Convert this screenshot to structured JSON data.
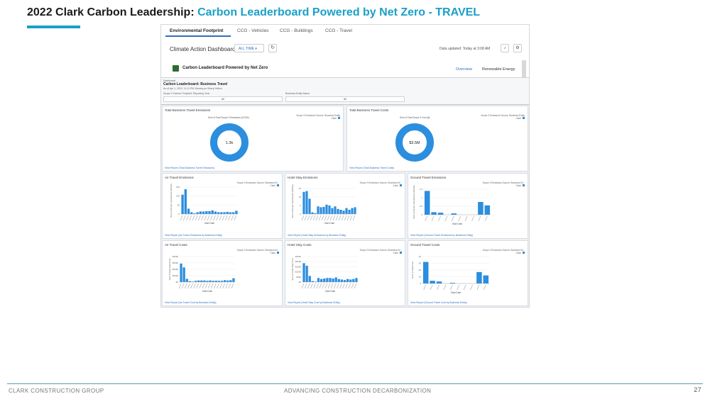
{
  "slide": {
    "title_prefix": "2022 Clark Carbon Leadership: ",
    "title_accent": "Carbon Leaderboard Powered by Net Zero - TRAVEL",
    "footer_left": "CLARK CONSTRUCTION GROUP",
    "footer_center": "ADVANCING CONSTRUCTION DECARBONIZATION",
    "page_number": "27",
    "accent_color": "#1aa0c8"
  },
  "tabs": [
    {
      "label": "Environmental Footprint",
      "active": true
    },
    {
      "label": "CCG - Vehicles",
      "active": false
    },
    {
      "label": "CCG - Buildings",
      "active": false
    },
    {
      "label": "CCG - Travel",
      "active": false
    }
  ],
  "header": {
    "title": "Climate Action Dashboard",
    "time_filter": "ALL TIME",
    "updated": "Data updated: Today at 3:08 AM",
    "refresh_icon": "refresh-icon",
    "bell_icon": "bell-icon",
    "settings_icon": "gear-icon"
  },
  "leaderboard": {
    "title": "Carbon Leaderboard Powered by Net Zero",
    "links": [
      "Overview",
      "Renewable Energy"
    ]
  },
  "embedded": {
    "crumb": "Dashboard",
    "title": "Carbon Leaderboard: Business Travel",
    "subtitle": "As of Apr 1, 2022, 11:11 PM Viewing as Sheryl Helion",
    "filter1_label": "Scope 3 Carbon Footprint: Reporting Year",
    "filter1_value": "All",
    "filter2_label": "Business Entity Name",
    "filter2_value": "All"
  },
  "cards": {
    "emissions_total": {
      "title": "Total Business Travel Emissions",
      "sum_label": "Sum of Total Scope 3 Emissions (tCO2e)",
      "legend": "Scope 3 Emissions Source: Business Entity",
      "legend_item": "Clark",
      "value": "1.3k",
      "link": "View Report (Total Business Travel Emissions)"
    },
    "costs_total": {
      "title": "Total Business Travel Costs",
      "sum_label": "Sum of Total Scope 3 Cost ($)",
      "legend": "Scope 3 Emissions Source: Business Entity",
      "legend_item": "Clark",
      "value": "$3.5M",
      "link": "View Report (Total Business Travel Costs)"
    },
    "air_emissions": {
      "title": "Air Travel Emissions",
      "legend": "Scope 3 Emissions Source: Business En..",
      "legend_item": "Clark",
      "xlabel": "Start Date",
      "ylabel": "Sum of Scope 3 Emissions (tCO2e)",
      "link": "View Report (Air Travel Emissions by Business Entity)"
    },
    "hotel_emissions": {
      "title": "Hotel Stay Emissions",
      "legend": "Scope 3 Emissions Source: Business En..",
      "legend_item": "Clark",
      "xlabel": "Start Date",
      "ylabel": "Sum of Scope 3 Emissions (tCO2e)",
      "link": "View Report (Hotel Stay Emissions by Business Entity)"
    },
    "ground_emissions": {
      "title": "Ground Travel Emissions",
      "legend": "Scope 3 Emissions Source: Business En..",
      "legend_item": "Clark",
      "xlabel": "Start Date",
      "ylabel": "Sum of Scope 3 Emissions (tCO2e)",
      "link": "View Report (Ground Travel Emissions by Business Entity)"
    },
    "air_costs": {
      "title": "Air Travel Costs",
      "legend": "Scope 3 Emissions Source: Business En..",
      "legend_item": "Clark",
      "xlabel": "Start Date",
      "ylabel": "Sum of Expensed Cost",
      "link": "View Report (Air Travel Cost by Business Entity)"
    },
    "hotel_costs": {
      "title": "Hotel Stay Costs",
      "legend": "Scope 3 Emissions Source: Business En..",
      "legend_item": "Clark",
      "xlabel": "Start Date",
      "ylabel": "Sum of Hotel Stay Cost",
      "link": "View Report (Hotel Stay Cost by Business Entity)"
    },
    "ground_costs": {
      "title": "Ground Travel Costs",
      "legend": "Scope 3 Emissions Source: Business En..",
      "legend_item": "Clark",
      "xlabel": "Start Date",
      "ylabel": "Sum of Total Cost",
      "link": "View Report (Ground Travel Cost by Business Entity)"
    }
  },
  "chart_data": [
    {
      "id": "emissions_total",
      "type": "pie",
      "values": [
        1300
      ],
      "center_label": "1.3k",
      "color": "#2b8ede"
    },
    {
      "id": "costs_total",
      "type": "pie",
      "values": [
        3500000
      ],
      "center_label": "$3.5M",
      "color": "#2b8ede"
    },
    {
      "id": "air_emissions",
      "type": "bar",
      "color": "#2b8ede",
      "ylim": [
        0,
        150
      ],
      "yticks": [
        "0",
        "50",
        "100",
        "150"
      ],
      "values": [
        108,
        138,
        30,
        10,
        4,
        10,
        14,
        14,
        16,
        16,
        20,
        14,
        10,
        10,
        10,
        12,
        10,
        10,
        18
      ]
    },
    {
      "id": "hotel_emissions",
      "type": "bar",
      "color": "#2b8ede",
      "ylim": [
        0,
        15
      ],
      "yticks": [
        "0",
        "5",
        "10",
        "15"
      ],
      "values": [
        13,
        13.5,
        9,
        1,
        0.5,
        4.5,
        4,
        4.2,
        5.5,
        5,
        3.5,
        4.5,
        3,
        2.5,
        2,
        3.5,
        2.5,
        3.5,
        4
      ]
    },
    {
      "id": "ground_emissions",
      "type": "bar",
      "color": "#2b8ede",
      "ylim": [
        0,
        1.5
      ],
      "yticks": [
        "0",
        "0.5",
        "1",
        "1.5"
      ],
      "values": [
        1.4,
        0.15,
        0.12,
        0,
        0.08,
        0,
        0,
        0,
        0.75,
        0.55
      ]
    },
    {
      "id": "air_costs",
      "type": "bar",
      "color": "#2b8ede",
      "ylim": [
        0,
        400
      ],
      "yticks": [
        "$0",
        "$100k",
        "$200k",
        "$300k",
        "$400k"
      ],
      "values": [
        290,
        230,
        50,
        15,
        8,
        20,
        25,
        25,
        25,
        20,
        25,
        20,
        22,
        20,
        20,
        30,
        25,
        30,
        60
      ]
    },
    {
      "id": "hotel_costs",
      "type": "bar",
      "color": "#2b8ede",
      "ylim": [
        0,
        250
      ],
      "yticks": [
        "$0",
        "$50k",
        "$100k",
        "$150k",
        "$200k",
        "$250k"
      ],
      "values": [
        185,
        160,
        60,
        10,
        5,
        40,
        30,
        35,
        40,
        40,
        35,
        45,
        30,
        25,
        20,
        30,
        25,
        30,
        40
      ]
    },
    {
      "id": "ground_costs",
      "type": "bar",
      "color": "#2b8ede",
      "ylim": [
        0,
        40
      ],
      "yticks": [
        "0",
        "10",
        "20",
        "30",
        "40"
      ],
      "values": [
        32,
        4,
        3,
        0,
        1,
        0,
        0,
        0,
        17,
        12
      ]
    }
  ]
}
